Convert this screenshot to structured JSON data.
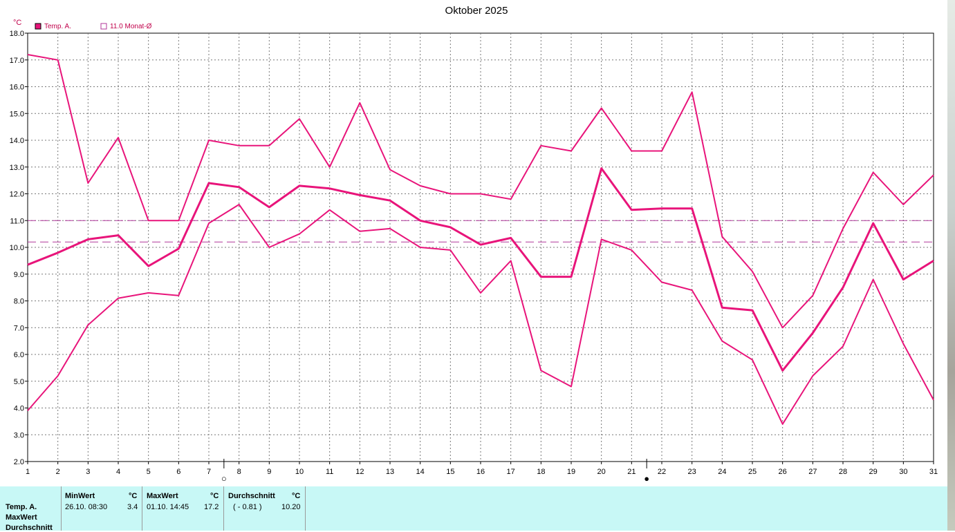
{
  "chart_data": {
    "type": "line",
    "title": "Oktober 2025",
    "ylabel": "°C",
    "x": [
      1,
      2,
      3,
      4,
      5,
      6,
      7,
      8,
      9,
      10,
      11,
      12,
      13,
      14,
      15,
      16,
      17,
      18,
      19,
      20,
      21,
      22,
      23,
      24,
      25,
      26,
      27,
      28,
      29,
      30,
      31
    ],
    "xlim": [
      1,
      31
    ],
    "ylim": [
      2.0,
      18.0
    ],
    "yticks": [
      "2.0",
      "3.0",
      "4.0",
      "5.0",
      "6.0",
      "7.0",
      "8.0",
      "9.0",
      "10.0",
      "11.0",
      "12.0",
      "13.0",
      "14.0",
      "15.0",
      "16.0",
      "17.0",
      "18.0"
    ],
    "grid": true,
    "series": [
      {
        "role": "max",
        "values": [
          17.2,
          17.0,
          12.4,
          14.1,
          11.0,
          11.0,
          14.0,
          13.8,
          13.8,
          14.8,
          13.0,
          15.4,
          12.9,
          12.3,
          12.0,
          12.0,
          11.8,
          13.8,
          13.6,
          15.2,
          13.6,
          13.6,
          15.8,
          10.4,
          9.1,
          7.0,
          8.2,
          10.7,
          12.8,
          11.6,
          12.7
        ]
      },
      {
        "role": "mean",
        "name": "Temp. A.",
        "values": [
          9.35,
          9.8,
          10.3,
          10.45,
          9.3,
          9.95,
          12.4,
          12.25,
          11.5,
          12.3,
          12.2,
          11.95,
          11.75,
          11.0,
          10.75,
          10.1,
          10.35,
          8.9,
          8.9,
          12.95,
          11.4,
          11.45,
          11.45,
          7.75,
          7.65,
          5.4,
          6.8,
          8.5,
          10.9,
          8.8,
          9.5
        ]
      },
      {
        "role": "min",
        "values": [
          3.9,
          5.2,
          7.1,
          8.1,
          8.3,
          8.2,
          10.9,
          11.6,
          10.0,
          10.5,
          11.4,
          10.6,
          10.7,
          10.0,
          9.9,
          8.3,
          9.5,
          5.4,
          4.8,
          10.3,
          9.9,
          8.7,
          8.4,
          6.5,
          5.8,
          3.4,
          5.2,
          6.3,
          8.8,
          6.4,
          4.3
        ]
      }
    ],
    "reference_lines": [
      {
        "name": "11.0 Monat-Ø",
        "value": 11.0
      },
      {
        "value": 10.2
      }
    ],
    "moon_phases": [
      {
        "day": 7,
        "symbol": "○"
      },
      {
        "day": 21,
        "symbol": "●"
      }
    ],
    "legend": [
      {
        "label": "Temp. A.",
        "marker": "filled"
      },
      {
        "label": "11.0 Monat-Ø",
        "marker": "hollow"
      }
    ],
    "colors": {
      "series": "#e8147a",
      "reference": "#b0369a",
      "grid": "#777777"
    }
  },
  "stats": {
    "row_labels": [
      "Temp. A.",
      "MaxWert",
      "Durchschnitt"
    ],
    "min": {
      "header": "MinWert",
      "unit": "°C",
      "datetime": "26.10.  08:30",
      "value": "3.4"
    },
    "max": {
      "header": "MaxWert",
      "unit": "°C",
      "datetime": "01.10.  14:45",
      "value": "17.2"
    },
    "avg": {
      "header": "Durchschnitt",
      "unit": "°C",
      "delta": "( - 0.81 )",
      "value": "10.20"
    }
  }
}
